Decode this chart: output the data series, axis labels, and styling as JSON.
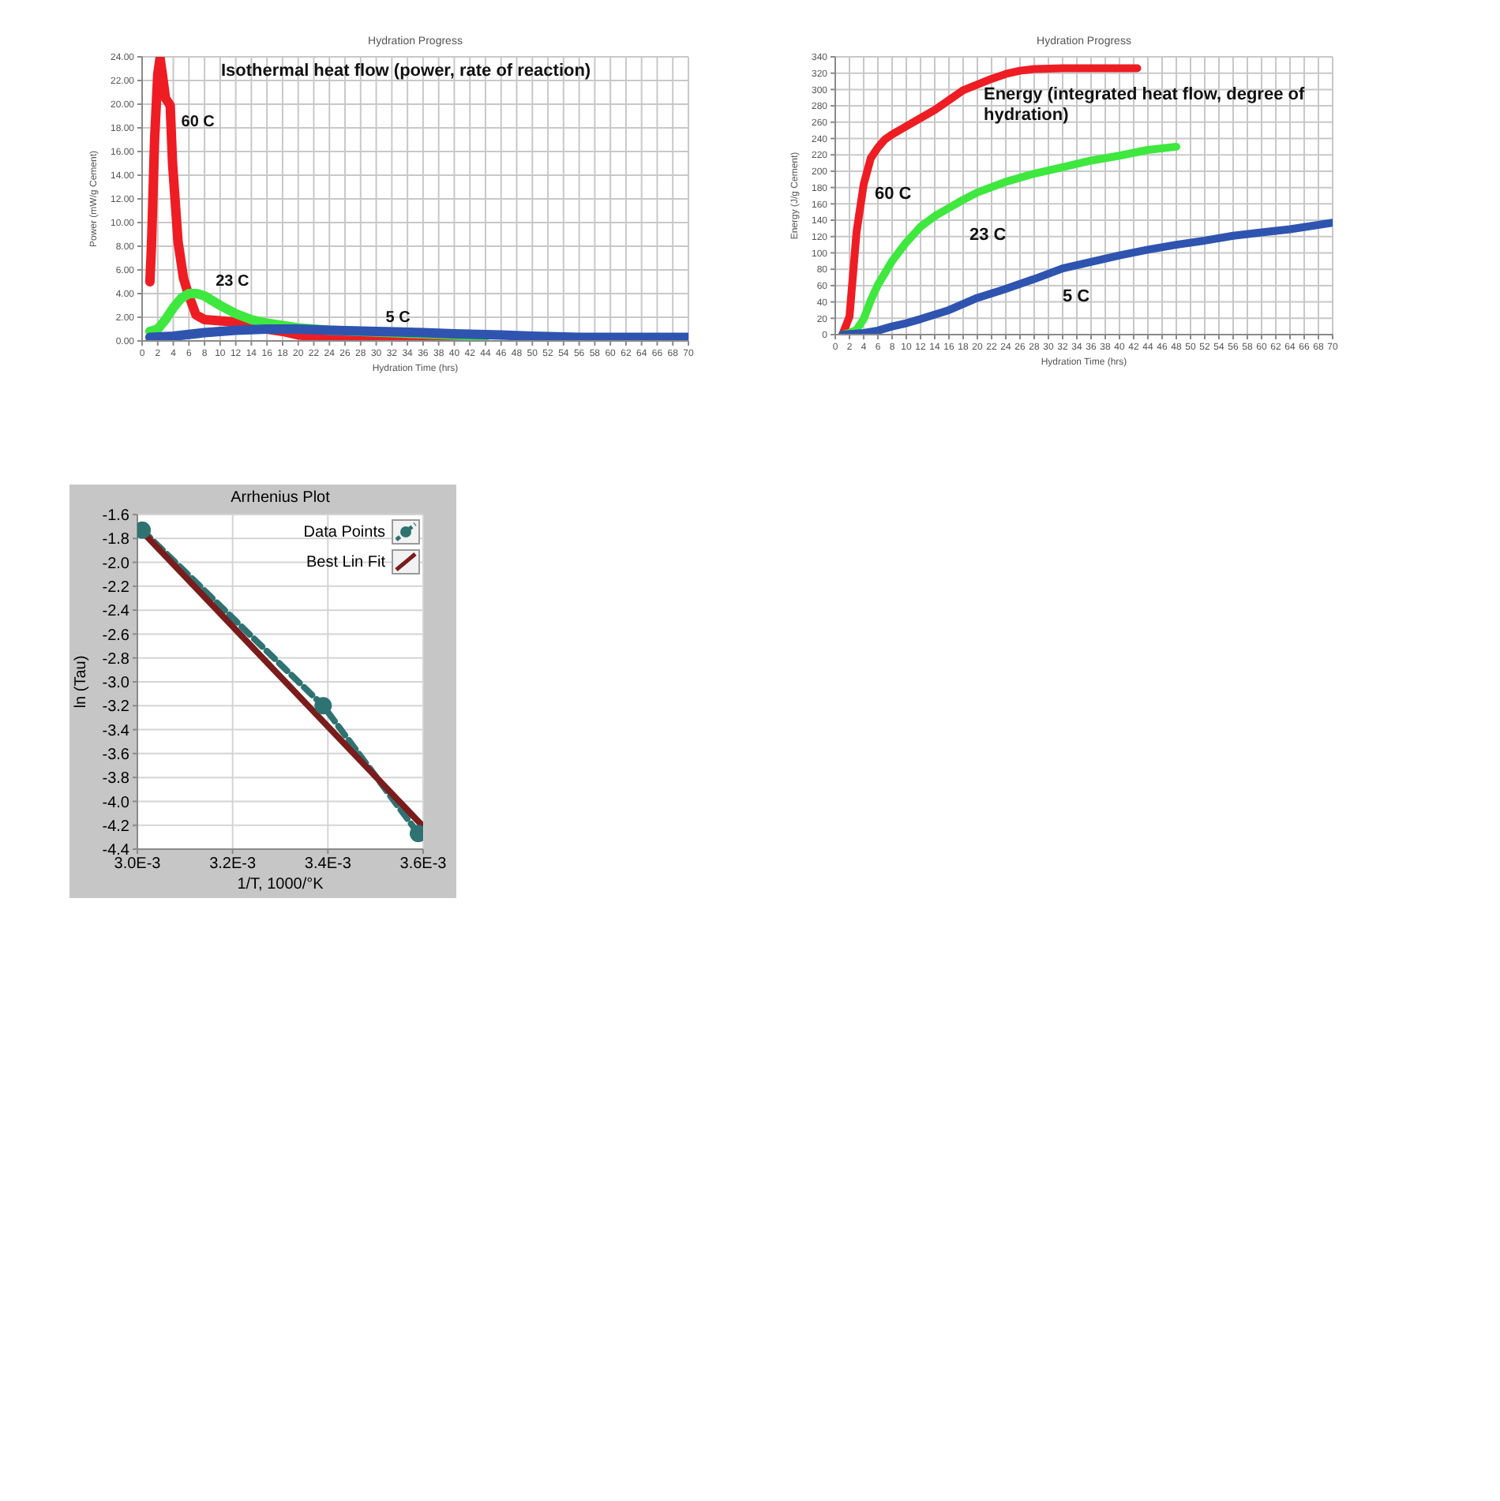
{
  "chart_data": [
    {
      "type": "line",
      "title": "Hydration Progress",
      "xlabel": "Hydration Time (hrs)",
      "ylabel": "Power (mW/g Cement)",
      "annotations": [
        "Isothermal heat flow (power, rate of reaction)"
      ],
      "xlim": [
        0,
        70
      ],
      "xticks": [
        0,
        2,
        4,
        6,
        8,
        10,
        12,
        14,
        16,
        18,
        20,
        22,
        24,
        26,
        28,
        30,
        32,
        34,
        36,
        38,
        40,
        42,
        44,
        46,
        48,
        50,
        52,
        54,
        56,
        58,
        60,
        62,
        64,
        66,
        68,
        70
      ],
      "ylim": [
        0,
        24
      ],
      "yticks": [
        {
          "value": 0,
          "label": "0.00"
        },
        {
          "value": 2,
          "label": "2.00"
        },
        {
          "value": 4,
          "label": "4.00"
        },
        {
          "value": 6,
          "label": "6.00"
        },
        {
          "value": 8,
          "label": "8.00"
        },
        {
          "value": 10,
          "label": "10.00"
        },
        {
          "value": 12,
          "label": "12.00"
        },
        {
          "value": 14,
          "label": "14.00"
        },
        {
          "value": 16,
          "label": "16.00"
        },
        {
          "value": 18,
          "label": "18.00"
        },
        {
          "value": 20,
          "label": "20.00"
        },
        {
          "value": 22,
          "label": "22.00"
        },
        {
          "value": 24,
          "label": "24.00"
        }
      ],
      "grid": true,
      "series": [
        {
          "name": "60 C",
          "color": "#ee1d23",
          "x": [
            1,
            1.2,
            1.6,
            2,
            2.3,
            2.6,
            3,
            3.6,
            3.9,
            4.6,
            5.3,
            5.9,
            6.9,
            8,
            10,
            12,
            14,
            16,
            18,
            20,
            22,
            24,
            26,
            30,
            36,
            42
          ],
          "values": [
            5,
            8,
            17,
            22.5,
            23.9,
            22.5,
            20.5,
            19.9,
            15,
            8.4,
            5.3,
            4,
            2.2,
            1.8,
            1.7,
            1.6,
            1.3,
            1,
            0.8,
            0.5,
            0.4,
            0.2,
            0.1,
            0.1,
            0.1,
            0.1
          ]
        },
        {
          "name": "23 C",
          "color": "#3ee83e",
          "x": [
            1,
            2,
            3,
            4,
            5,
            6,
            7,
            8,
            10,
            12,
            14,
            16,
            18,
            20,
            24,
            28,
            32,
            36,
            40,
            44
          ],
          "values": [
            0.8,
            1,
            1.8,
            2.8,
            3.6,
            4,
            4,
            3.8,
            3,
            2.3,
            1.8,
            1.5,
            1.3,
            1.1,
            0.9,
            0.8,
            0.7,
            0.6,
            0.5,
            0.4
          ]
        },
        {
          "name": "5 C",
          "color": "#2e54b0",
          "x": [
            1,
            4,
            8,
            12,
            16,
            20,
            24,
            30,
            36,
            40,
            46,
            50,
            56,
            60,
            66,
            70
          ],
          "values": [
            0.3,
            0.4,
            0.7,
            0.9,
            1,
            1,
            0.9,
            0.8,
            0.7,
            0.6,
            0.5,
            0.4,
            0.3,
            0.3,
            0.3,
            0.3
          ]
        }
      ]
    },
    {
      "type": "line",
      "title": "Hydration Progress",
      "xlabel": "Hydration Time (hrs)",
      "ylabel": "Energy (J/g Cement)",
      "annotations": [
        "Energy (integrated heat flow, degree of hydration)"
      ],
      "xlim": [
        0,
        70
      ],
      "xticks": [
        0,
        2,
        4,
        6,
        8,
        10,
        12,
        14,
        16,
        18,
        20,
        22,
        24,
        26,
        28,
        30,
        32,
        34,
        36,
        38,
        40,
        42,
        44,
        46,
        48,
        50,
        52,
        54,
        56,
        58,
        60,
        62,
        64,
        66,
        68,
        70
      ],
      "ylim": [
        0,
        340
      ],
      "yticks": [
        0,
        20,
        40,
        60,
        80,
        100,
        120,
        140,
        160,
        180,
        200,
        220,
        240,
        260,
        280,
        300,
        320,
        340
      ],
      "grid": true,
      "series": [
        {
          "name": "60 C",
          "color": "#ee1d23",
          "x": [
            1,
            2,
            3,
            4,
            5,
            6,
            7,
            8,
            10,
            12,
            14,
            16,
            18,
            20,
            22,
            24,
            26,
            28,
            32,
            36,
            42.5
          ],
          "values": [
            0,
            22,
            126,
            184,
            216,
            229,
            239,
            245,
            255,
            265,
            275,
            287,
            299,
            306,
            313,
            319,
            323,
            325,
            326,
            326,
            326
          ]
        },
        {
          "name": "23 C",
          "color": "#3ee83e",
          "x": [
            1,
            2,
            3,
            4,
            5,
            6,
            8,
            10,
            12,
            14,
            16,
            18,
            20,
            24,
            28,
            32,
            36,
            40,
            44,
            48
          ],
          "values": [
            0,
            2,
            6,
            19,
            42,
            61,
            90,
            113,
            132,
            145,
            155,
            165,
            174,
            187,
            197,
            205,
            213,
            219,
            226,
            230
          ]
        },
        {
          "name": "5 C",
          "color": "#2e54b0",
          "x": [
            1,
            4,
            6,
            8,
            10,
            12,
            16,
            20,
            24,
            28,
            32,
            36,
            40,
            44,
            48,
            52,
            56,
            60,
            64,
            70
          ],
          "values": [
            0,
            2,
            5,
            10,
            14,
            19,
            30,
            45,
            56,
            68,
            81,
            89,
            97,
            104,
            110,
            115,
            121,
            125,
            129,
            137
          ]
        }
      ]
    },
    {
      "type": "line",
      "title": "Arrhenius Plot",
      "xlabel": "1/T, 1000/°K",
      "ylabel": "ln (Tau)",
      "xlim": [
        0.003,
        0.0036
      ],
      "xticks": [
        {
          "value": 0.003,
          "label": "3.0E-3"
        },
        {
          "value": 0.0032,
          "label": "3.2E-3"
        },
        {
          "value": 0.0034,
          "label": "3.4E-3"
        },
        {
          "value": 0.0036,
          "label": "3.6E-3"
        }
      ],
      "ylim": [
        -4.4,
        -1.6
      ],
      "yticks": [
        -1.6,
        -1.8,
        {
          "value": -2,
          "label": "-2.0"
        },
        -2.2,
        -2.4,
        -2.6,
        -2.8,
        {
          "value": -3,
          "label": "-3.0"
        },
        -3.2,
        -3.4,
        -3.6,
        -3.8,
        {
          "value": -4,
          "label": "-4.0"
        },
        -4.2,
        -4.4
      ],
      "grid": true,
      "legend": "top right",
      "series": [
        {
          "name": "Data Points",
          "color": "#2f7272",
          "x": [
            0.00301,
            0.00339,
            0.00359
          ],
          "values": [
            -1.73,
            -3.2,
            -4.27
          ],
          "marker": "circle",
          "line_style": "dashed"
        },
        {
          "name": "Best Lin Fit",
          "color": "#7b1c1c",
          "x": [
            0.003,
            0.0036
          ],
          "values": [
            -1.7,
            -4.21
          ],
          "line_style": "solid"
        }
      ]
    }
  ]
}
